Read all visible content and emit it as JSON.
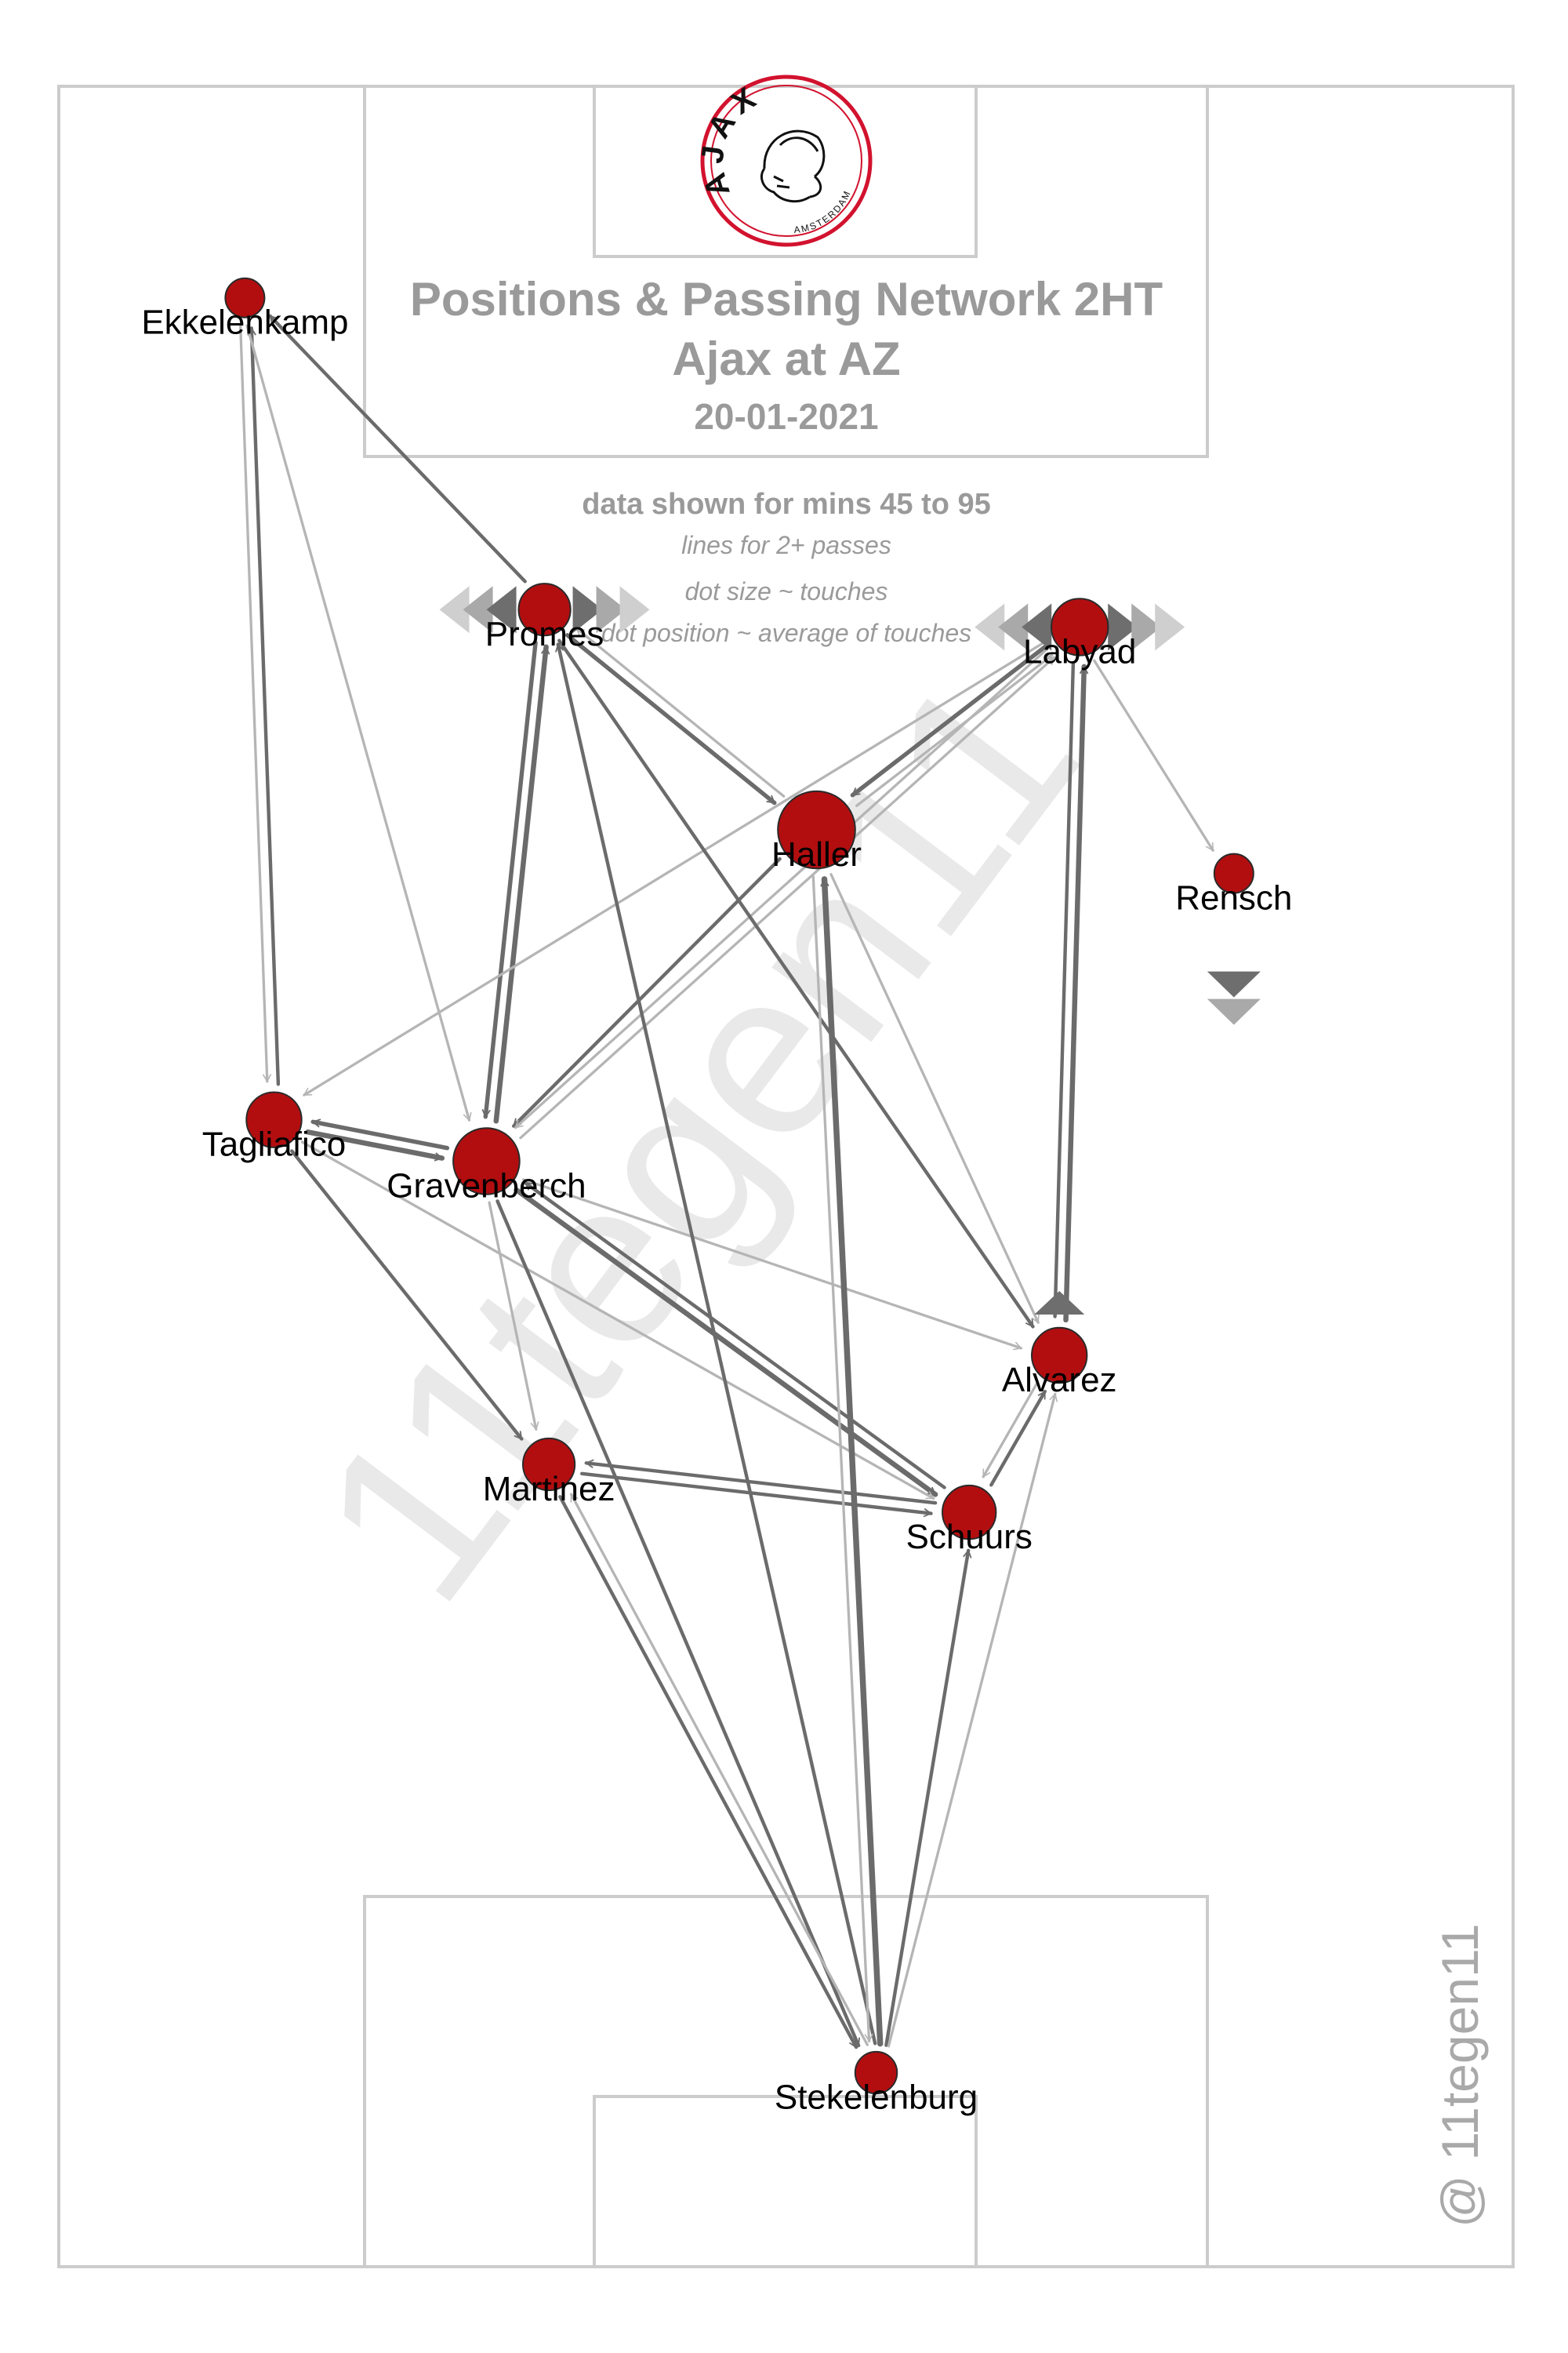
{
  "chart_data": {
    "type": "passing-network",
    "title": "Positions & Passing Network 2HT",
    "subtitle": "Ajax at AZ",
    "date": "20-01-2021",
    "legend": {
      "range": "data shown for mins 45 to 95",
      "lines": "lines for 2+ passes",
      "size": "dot size ~ touches",
      "position": "dot position ~ average of touches"
    },
    "logo": {
      "top_text": "AJAX",
      "bottom_text": "AMSTERDAM",
      "ring_color": "#d2122e"
    },
    "watermark": "11tegen11",
    "credit": "@ 11tegen11",
    "colors": {
      "dot": "#b20e10",
      "line_dark": "#6b6b6b",
      "line_light": "#b5b5b5",
      "pitch_line": "#cccccc",
      "text": "#9a9a9a"
    },
    "players": [
      {
        "name": "Ekkelenkamp",
        "x": 12.8,
        "y": 90.3,
        "touches": 4,
        "sub": ""
      },
      {
        "name": "Promes",
        "x": 33.4,
        "y": 76.0,
        "touches": 10,
        "sub": "both"
      },
      {
        "name": "Labyad",
        "x": 70.2,
        "y": 75.2,
        "touches": 13,
        "sub": "both"
      },
      {
        "name": "Haller",
        "x": 52.1,
        "y": 65.9,
        "touches": 30,
        "sub": ""
      },
      {
        "name": "Rensch",
        "x": 80.8,
        "y": 63.9,
        "touches": 4,
        "sub": "off"
      },
      {
        "name": "Tagliafico",
        "x": 14.8,
        "y": 52.6,
        "touches": 12,
        "sub": ""
      },
      {
        "name": "Gravenberch",
        "x": 29.4,
        "y": 50.7,
        "touches": 20,
        "sub": ""
      },
      {
        "name": "Alvarez",
        "x": 68.8,
        "y": 41.8,
        "touches": 12,
        "sub": "on"
      },
      {
        "name": "Martinez",
        "x": 33.7,
        "y": 36.8,
        "touches": 10,
        "sub": ""
      },
      {
        "name": "Schuurs",
        "x": 62.6,
        "y": 34.6,
        "touches": 11,
        "sub": ""
      },
      {
        "name": "Stekelenburg",
        "x": 56.2,
        "y": 8.9,
        "touches": 5,
        "sub": ""
      }
    ],
    "passes": [
      {
        "from": "Tagliafico",
        "to": "Ekkelenkamp",
        "count": 3
      },
      {
        "from": "Ekkelenkamp",
        "to": "Tagliafico",
        "count": 2
      },
      {
        "from": "Promes",
        "to": "Ekkelenkamp",
        "count": 3
      },
      {
        "from": "Ekkelenkamp",
        "to": "Gravenberch",
        "count": 2
      },
      {
        "from": "Tagliafico",
        "to": "Gravenberch",
        "count": 5
      },
      {
        "from": "Gravenberch",
        "to": "Tagliafico",
        "count": 4
      },
      {
        "from": "Gravenberch",
        "to": "Promes",
        "count": 5
      },
      {
        "from": "Promes",
        "to": "Gravenberch",
        "count": 4
      },
      {
        "from": "Promes",
        "to": "Haller",
        "count": 4
      },
      {
        "from": "Haller",
        "to": "Promes",
        "count": 2
      },
      {
        "from": "Haller",
        "to": "Gravenberch",
        "count": 3
      },
      {
        "from": "Labyad",
        "to": "Haller",
        "count": 4
      },
      {
        "from": "Haller",
        "to": "Labyad",
        "count": 2
      },
      {
        "from": "Labyad",
        "to": "Gravenberch",
        "count": 2
      },
      {
        "from": "Gravenberch",
        "to": "Labyad",
        "count": 2
      },
      {
        "from": "Labyad",
        "to": "Tagliafico",
        "count": 2
      },
      {
        "from": "Labyad",
        "to": "Rensch",
        "count": 2
      },
      {
        "from": "Labyad",
        "to": "Alvarez",
        "count": 3
      },
      {
        "from": "Alvarez",
        "to": "Labyad",
        "count": 5
      },
      {
        "from": "Promes",
        "to": "Alvarez",
        "count": 3
      },
      {
        "from": "Haller",
        "to": "Alvarez",
        "count": 2
      },
      {
        "from": "Gravenberch",
        "to": "Alvarez",
        "count": 2
      },
      {
        "from": "Gravenberch",
        "to": "Schuurs",
        "count": 5
      },
      {
        "from": "Schuurs",
        "to": "Gravenberch",
        "count": 3
      },
      {
        "from": "Gravenberch",
        "to": "Martinez",
        "count": 2
      },
      {
        "from": "Tagliafico",
        "to": "Martinez",
        "count": 3
      },
      {
        "from": "Tagliafico",
        "to": "Schuurs",
        "count": 2
      },
      {
        "from": "Schuurs",
        "to": "Martinez",
        "count": 3
      },
      {
        "from": "Martinez",
        "to": "Schuurs",
        "count": 3
      },
      {
        "from": "Schuurs",
        "to": "Alvarez",
        "count": 3
      },
      {
        "from": "Alvarez",
        "to": "Schuurs",
        "count": 2
      },
      {
        "from": "Stekelenburg",
        "to": "Haller",
        "count": 6
      },
      {
        "from": "Stekelenburg",
        "to": "Promes",
        "count": 3
      },
      {
        "from": "Gravenberch",
        "to": "Stekelenburg",
        "count": 3
      },
      {
        "from": "Martinez",
        "to": "Stekelenburg",
        "count": 3
      },
      {
        "from": "Stekelenburg",
        "to": "Martinez",
        "count": 2
      },
      {
        "from": "Stekelenburg",
        "to": "Schuurs",
        "count": 3
      },
      {
        "from": "Stekelenburg",
        "to": "Alvarez",
        "count": 2
      },
      {
        "from": "Haller",
        "to": "Stekelenburg",
        "count": 2
      }
    ],
    "x_range": [
      0,
      100
    ],
    "y_range": [
      0,
      100
    ],
    "grid": false
  }
}
